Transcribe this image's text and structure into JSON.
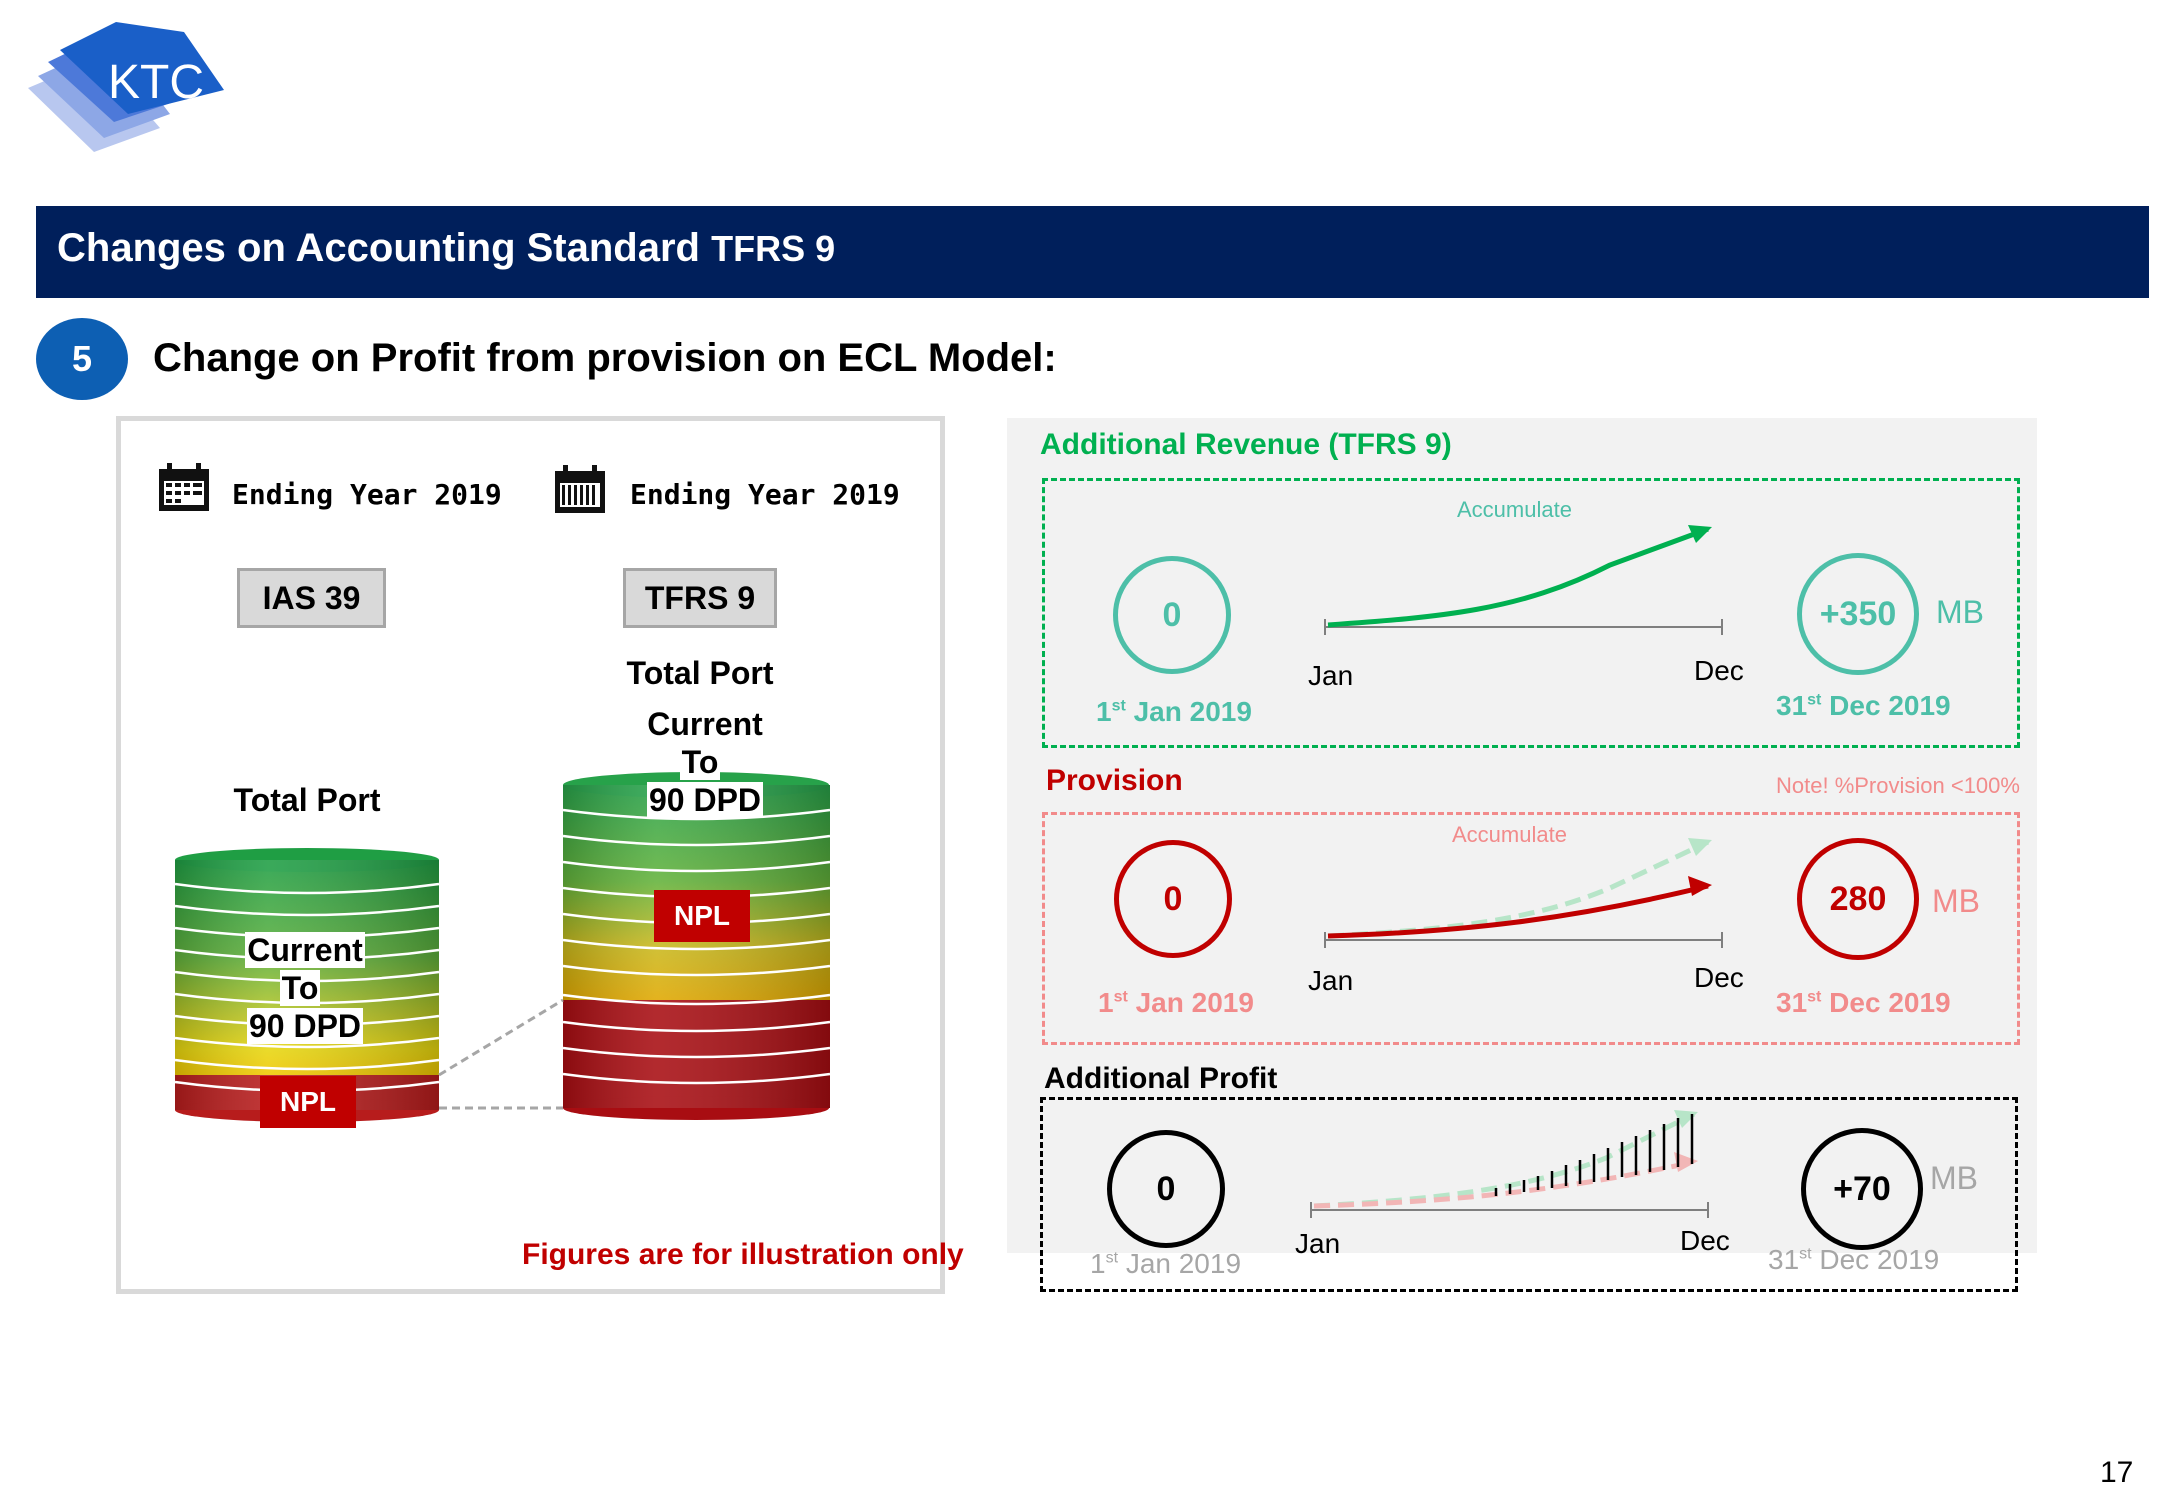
{
  "logo": {
    "text": "KTC"
  },
  "banner": {
    "title_main": "Changes on Accounting Standard",
    "title_suffix": "TFRS 9"
  },
  "section": {
    "number": "5",
    "title": "Change on Profit from provision on ECL Model:"
  },
  "left_panel": {
    "ias39": {
      "ending_year": "Ending Year 2019",
      "standard": "IAS 39",
      "total_port": "Total Port",
      "current_to": [
        "Current",
        "To",
        "90 DPD"
      ],
      "npl": "NPL"
    },
    "tfrs9": {
      "ending_year": "Ending Year 2019",
      "standard": "TFRS 9",
      "total_port": "Total Port",
      "current_to": [
        "Current",
        "To",
        "90 DPD"
      ],
      "npl": "NPL"
    },
    "disclaimer": "Figures are for illustration only"
  },
  "right_panel": {
    "revenue": {
      "title": "Additional Revenue (TFRS 9)",
      "accumulate": "Accumulate",
      "start_value": "0",
      "end_value": "+350",
      "unit": "MB",
      "axis_start": "Jan",
      "axis_end": "Dec",
      "start_date": {
        "day": "1",
        "suffix": "st",
        "rest": "Jan 2019"
      },
      "end_date": {
        "day": "31",
        "suffix": "st",
        "rest": "Dec 2019"
      },
      "color": "#00b050",
      "light_color": "#4dbfa8"
    },
    "provision": {
      "title": "Provision",
      "note": "Note! %Provision <100%",
      "accumulate": "Accumulate",
      "start_value": "0",
      "end_value": "280",
      "unit": "MB",
      "axis_start": "Jan",
      "axis_end": "Dec",
      "start_date": {
        "day": "1",
        "suffix": "st",
        "rest": "Jan 2019"
      },
      "end_date": {
        "day": "31",
        "suffix": "st",
        "rest": "Dec 2019"
      },
      "color": "#c00000",
      "light_color": "#f28b8b"
    },
    "profit": {
      "title": "Additional Profit",
      "start_value": "0",
      "end_value": "+70",
      "unit": "MB",
      "axis_start": "Jan",
      "axis_end": "Dec",
      "start_date": {
        "day": "1",
        "suffix": "st",
        "rest": "Jan 2019"
      },
      "end_date": {
        "day": "31",
        "suffix": "st",
        "rest": "Dec 2019"
      }
    }
  },
  "page_number": "17"
}
